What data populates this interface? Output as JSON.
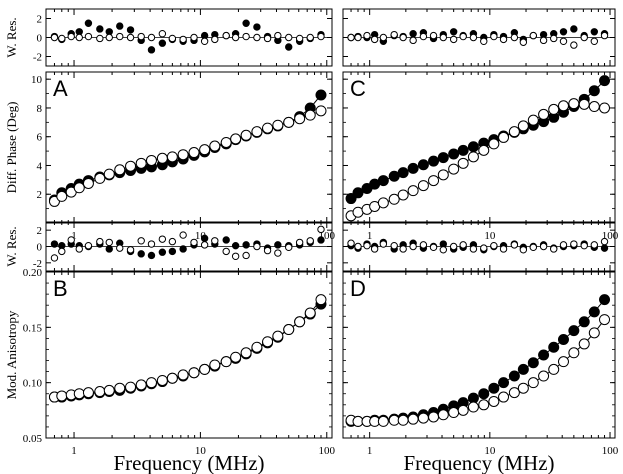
{
  "chart_data": [
    {
      "id": "A",
      "type": "scatter",
      "panel_label": "A",
      "ylabel": "Diff. Phase (Deg)",
      "xlabel": "Frequency (MHz)",
      "xscale": "log",
      "xlim": [
        0.6,
        110
      ],
      "ylim": [
        0,
        10.5
      ],
      "xticks": [
        "1",
        "10",
        "100"
      ],
      "yticks": [
        "2",
        "4",
        "6",
        "8",
        "10"
      ],
      "series": [
        {
          "marker": "filled",
          "x": [
            0.7,
            0.8,
            0.95,
            1.1,
            1.3,
            1.6,
            1.9,
            2.3,
            2.8,
            3.4,
            4.1,
            5,
            6,
            7.3,
            8.9,
            10.8,
            13,
            16,
            19,
            23,
            28,
            34,
            41,
            50,
            61,
            74,
            90
          ],
          "y": [
            1.6,
            2.1,
            2.4,
            2.7,
            2.95,
            3.2,
            3.35,
            3.5,
            3.65,
            3.8,
            3.9,
            4.05,
            4.25,
            4.45,
            4.7,
            4.95,
            5.25,
            5.5,
            5.8,
            6.05,
            6.3,
            6.55,
            6.75,
            7.0,
            7.4,
            8.0,
            8.9
          ]
        },
        {
          "marker": "open",
          "x": [
            0.7,
            0.8,
            0.95,
            1.1,
            1.3,
            1.6,
            1.9,
            2.3,
            2.8,
            3.4,
            4.1,
            5,
            6,
            7.3,
            8.9,
            10.8,
            13,
            16,
            19,
            23,
            28,
            34,
            41,
            50,
            61,
            74,
            90
          ],
          "y": [
            1.5,
            1.85,
            2.15,
            2.45,
            2.75,
            3.1,
            3.4,
            3.7,
            3.95,
            4.15,
            4.35,
            4.5,
            4.6,
            4.75,
            4.9,
            5.1,
            5.35,
            5.6,
            5.85,
            6.1,
            6.35,
            6.6,
            6.8,
            7.0,
            7.25,
            7.5,
            7.8
          ]
        }
      ]
    },
    {
      "id": "A-res",
      "type": "scatter",
      "ylabel": "W. Res.",
      "xscale": "log",
      "xlim": [
        0.6,
        110
      ],
      "ylim": [
        -3,
        3
      ],
      "yticks": [
        "-2",
        "0",
        "2"
      ],
      "series": [
        {
          "marker": "filled",
          "x": [
            0.7,
            0.8,
            0.95,
            1.1,
            1.3,
            1.6,
            1.9,
            2.3,
            2.8,
            3.4,
            4.1,
            5,
            6,
            7.3,
            8.9,
            10.8,
            13,
            16,
            19,
            23,
            28,
            34,
            41,
            50,
            61,
            74,
            90
          ],
          "y": [
            0.1,
            -0.2,
            0.4,
            0.6,
            1.5,
            0.9,
            0.6,
            1.2,
            0.8,
            -0.3,
            -1.3,
            -0.6,
            -0.2,
            -0.4,
            -0.3,
            0.2,
            0.3,
            0.2,
            0.4,
            1.5,
            1.1,
            0.1,
            -0.3,
            -1.0,
            -0.4,
            -0.1,
            0.3
          ]
        },
        {
          "marker": "open",
          "x": [
            0.7,
            0.8,
            0.95,
            1.1,
            1.3,
            1.6,
            1.9,
            2.3,
            2.8,
            3.4,
            4.1,
            5,
            6,
            7.3,
            8.9,
            10.8,
            13,
            16,
            19,
            23,
            28,
            34,
            41,
            50,
            61,
            74,
            90
          ],
          "y": [
            0.0,
            -0.1,
            0.1,
            0.0,
            0.1,
            -0.1,
            0.0,
            0.1,
            0.0,
            0.1,
            0.0,
            0.4,
            -0.1,
            -0.2,
            0.0,
            -0.4,
            -0.2,
            0.2,
            0.0,
            0.1,
            0.0,
            -0.1,
            0.2,
            0.0,
            -0.1,
            0.0,
            0.1
          ]
        }
      ]
    },
    {
      "id": "B",
      "type": "scatter",
      "panel_label": "B",
      "ylabel": "Mod. Anisotropy",
      "xlabel": "Frequency (MHz)",
      "xscale": "log",
      "xlim": [
        0.6,
        110
      ],
      "ylim": [
        0.05,
        0.2
      ],
      "xticks": [
        "1",
        "10",
        "100"
      ],
      "yticks": [
        "0.05",
        "0.10",
        "0.15",
        "0.20"
      ],
      "series": [
        {
          "marker": "filled",
          "x": [
            0.7,
            0.8,
            0.95,
            1.1,
            1.3,
            1.6,
            1.9,
            2.3,
            2.8,
            3.4,
            4.1,
            5,
            6,
            7.3,
            8.9,
            10.8,
            13,
            16,
            19,
            23,
            28,
            34,
            41,
            50,
            61,
            74,
            90
          ],
          "y": [
            0.087,
            0.087,
            0.088,
            0.089,
            0.09,
            0.091,
            0.092,
            0.093,
            0.095,
            0.097,
            0.099,
            0.101,
            0.104,
            0.106,
            0.109,
            0.112,
            0.115,
            0.119,
            0.122,
            0.126,
            0.131,
            0.136,
            0.141,
            0.148,
            0.155,
            0.162,
            0.171
          ]
        },
        {
          "marker": "open",
          "x": [
            0.7,
            0.8,
            0.95,
            1.1,
            1.3,
            1.6,
            1.9,
            2.3,
            2.8,
            3.4,
            4.1,
            5,
            6,
            7.3,
            8.9,
            10.8,
            13,
            16,
            19,
            23,
            28,
            34,
            41,
            50,
            61,
            74,
            90
          ],
          "y": [
            0.087,
            0.088,
            0.089,
            0.09,
            0.091,
            0.092,
            0.093,
            0.095,
            0.096,
            0.098,
            0.1,
            0.102,
            0.104,
            0.107,
            0.109,
            0.112,
            0.116,
            0.119,
            0.123,
            0.127,
            0.132,
            0.137,
            0.142,
            0.148,
            0.155,
            0.163,
            0.175
          ]
        }
      ]
    },
    {
      "id": "B-res",
      "type": "scatter",
      "ylabel": "W. Res.",
      "xscale": "log",
      "xlim": [
        0.6,
        110
      ],
      "ylim": [
        -3,
        3
      ],
      "yticks": [
        "-2",
        "0",
        "2"
      ],
      "series": [
        {
          "marker": "filled",
          "x": [
            0.7,
            0.8,
            0.95,
            1.1,
            1.3,
            1.6,
            1.9,
            2.3,
            2.8,
            3.4,
            4.1,
            5,
            6,
            7.3,
            8.9,
            10.8,
            13,
            16,
            19,
            23,
            28,
            34,
            41,
            50,
            61,
            74,
            90
          ],
          "y": [
            0.3,
            0.1,
            0.3,
            0.1,
            0.0,
            0.3,
            -0.3,
            0.4,
            -0.6,
            -0.9,
            -1.1,
            -0.7,
            -0.6,
            -0.3,
            0.2,
            1.0,
            0.3,
            0.8,
            0.1,
            0.2,
            0.3,
            -0.2,
            0.2,
            0.1,
            0.2,
            0.5,
            0.8
          ]
        },
        {
          "marker": "open",
          "x": [
            0.7,
            0.8,
            0.95,
            1.1,
            1.3,
            1.6,
            1.9,
            2.3,
            2.8,
            3.4,
            4.1,
            5,
            6,
            7.3,
            8.9,
            10.8,
            13,
            16,
            19,
            23,
            28,
            34,
            41,
            50,
            61,
            74,
            90
          ],
          "y": [
            -1.4,
            -0.6,
            0.8,
            -0.3,
            0.1,
            0.6,
            0.5,
            -0.2,
            -0.4,
            0.7,
            0.3,
            0.9,
            0.6,
            1.4,
            0.5,
            0.2,
            0.7,
            -0.6,
            -1.2,
            -1.1,
            0.0,
            -0.5,
            -0.8,
            -0.1,
            0.5,
            0.7,
            2.1
          ]
        }
      ]
    },
    {
      "id": "C",
      "type": "scatter",
      "panel_label": "C",
      "xlabel": "Frequency (MHz)",
      "xscale": "log",
      "xlim": [
        0.6,
        110
      ],
      "ylim": [
        0,
        10.5
      ],
      "xticks": [
        "1",
        "10",
        "100"
      ],
      "series": [
        {
          "marker": "filled",
          "x": [
            0.7,
            0.8,
            0.95,
            1.1,
            1.3,
            1.6,
            1.9,
            2.3,
            2.8,
            3.4,
            4.1,
            5,
            6,
            7.3,
            8.9,
            10.8,
            13,
            16,
            19,
            23,
            28,
            34,
            41,
            50,
            61,
            74,
            90
          ],
          "y": [
            1.7,
            2.1,
            2.4,
            2.7,
            2.95,
            3.25,
            3.5,
            3.8,
            4.05,
            4.3,
            4.55,
            4.8,
            5.05,
            5.3,
            5.55,
            5.8,
            6.05,
            6.3,
            6.55,
            6.8,
            7.05,
            7.35,
            7.7,
            8.1,
            8.6,
            9.2,
            9.9
          ]
        },
        {
          "marker": "open",
          "x": [
            0.7,
            0.8,
            0.95,
            1.1,
            1.3,
            1.6,
            1.9,
            2.3,
            2.8,
            3.4,
            4.1,
            5,
            6,
            7.3,
            8.9,
            10.8,
            13,
            16,
            19,
            23,
            28,
            34,
            41,
            50,
            61,
            74,
            90
          ],
          "y": [
            0.5,
            0.75,
            0.95,
            1.15,
            1.4,
            1.65,
            1.95,
            2.25,
            2.6,
            2.95,
            3.35,
            3.75,
            4.15,
            4.6,
            5.05,
            5.5,
            5.95,
            6.35,
            6.75,
            7.15,
            7.55,
            7.9,
            8.15,
            8.3,
            8.25,
            8.1,
            8.0
          ]
        }
      ]
    },
    {
      "id": "C-res",
      "type": "scatter",
      "xscale": "log",
      "xlim": [
        0.6,
        110
      ],
      "ylim": [
        -3,
        3
      ],
      "series": [
        {
          "marker": "filled",
          "x": [
            0.7,
            0.8,
            0.95,
            1.1,
            1.3,
            1.6,
            1.9,
            2.3,
            2.8,
            3.4,
            4.1,
            5,
            6,
            7.3,
            8.9,
            10.8,
            13,
            16,
            19,
            23,
            28,
            34,
            41,
            50,
            61,
            74,
            90
          ],
          "y": [
            0.0,
            0.1,
            0.0,
            0.3,
            -0.4,
            0.2,
            0.1,
            0.4,
            0.5,
            -0.1,
            0.3,
            0.6,
            0.2,
            0.4,
            0.0,
            0.3,
            0.1,
            0.5,
            -0.2,
            0.2,
            0.3,
            0.4,
            0.6,
            0.9,
            0.2,
            0.6,
            0.4
          ]
        },
        {
          "marker": "open",
          "x": [
            0.7,
            0.8,
            0.95,
            1.1,
            1.3,
            1.6,
            1.9,
            2.3,
            2.8,
            3.4,
            4.1,
            5,
            6,
            7.3,
            8.9,
            10.8,
            13,
            16,
            19,
            23,
            28,
            34,
            41,
            50,
            61,
            74,
            90
          ],
          "y": [
            0.0,
            0.0,
            0.2,
            -0.2,
            0.0,
            0.3,
            0.0,
            -0.3,
            0.1,
            0.2,
            0.0,
            -0.2,
            0.1,
            0.0,
            -0.4,
            0.1,
            -0.2,
            0.0,
            -0.5,
            0.2,
            -0.3,
            -0.1,
            -0.4,
            -0.8,
            0.0,
            -0.4,
            0.2
          ]
        }
      ]
    },
    {
      "id": "D",
      "type": "scatter",
      "panel_label": "D",
      "xlabel": "Frequency (MHz)",
      "xscale": "log",
      "xlim": [
        0.6,
        110
      ],
      "ylim": [
        0.05,
        0.2
      ],
      "xticks": [
        "1",
        "10",
        "100"
      ],
      "series": [
        {
          "marker": "filled",
          "x": [
            0.7,
            0.8,
            0.95,
            1.1,
            1.3,
            1.6,
            1.9,
            2.3,
            2.8,
            3.4,
            4.1,
            5,
            6,
            7.3,
            8.9,
            10.8,
            13,
            16,
            19,
            23,
            28,
            34,
            41,
            50,
            61,
            74,
            90
          ],
          "y": [
            0.065,
            0.065,
            0.065,
            0.066,
            0.066,
            0.067,
            0.068,
            0.069,
            0.071,
            0.073,
            0.076,
            0.079,
            0.082,
            0.086,
            0.09,
            0.095,
            0.1,
            0.106,
            0.112,
            0.118,
            0.125,
            0.132,
            0.139,
            0.147,
            0.155,
            0.164,
            0.175
          ]
        },
        {
          "marker": "open",
          "x": [
            0.7,
            0.8,
            0.95,
            1.1,
            1.3,
            1.6,
            1.9,
            2.3,
            2.8,
            3.4,
            4.1,
            5,
            6,
            7.3,
            8.9,
            10.8,
            13,
            16,
            19,
            23,
            28,
            34,
            41,
            50,
            61,
            74,
            90
          ],
          "y": [
            0.066,
            0.065,
            0.065,
            0.065,
            0.065,
            0.066,
            0.066,
            0.067,
            0.068,
            0.069,
            0.071,
            0.073,
            0.075,
            0.078,
            0.08,
            0.083,
            0.087,
            0.091,
            0.095,
            0.1,
            0.106,
            0.112,
            0.119,
            0.127,
            0.135,
            0.145,
            0.157
          ]
        }
      ]
    },
    {
      "id": "D-res",
      "type": "scatter",
      "xscale": "log",
      "xlim": [
        0.6,
        110
      ],
      "ylim": [
        -3,
        3
      ],
      "series": [
        {
          "marker": "filled",
          "x": [
            0.7,
            0.8,
            0.95,
            1.1,
            1.3,
            1.6,
            1.9,
            2.3,
            2.8,
            3.4,
            4.1,
            5,
            6,
            7.3,
            8.9,
            10.8,
            13,
            16,
            19,
            23,
            28,
            34,
            41,
            50,
            61,
            74,
            90
          ],
          "y": [
            0.1,
            -0.2,
            0.3,
            0.0,
            0.5,
            -0.3,
            0.2,
            0.4,
            -0.2,
            0.0,
            0.3,
            -0.3,
            -0.1,
            0.2,
            -0.4,
            0.0,
            0.1,
            0.3,
            -0.1,
            0.0,
            0.2,
            -0.2,
            0.0,
            0.1,
            0.3,
            -0.1,
            -0.2
          ]
        },
        {
          "marker": "open",
          "x": [
            0.7,
            0.8,
            0.95,
            1.1,
            1.3,
            1.6,
            1.9,
            2.3,
            2.8,
            3.4,
            4.1,
            5,
            6,
            7.3,
            8.9,
            10.8,
            13,
            16,
            19,
            23,
            28,
            34,
            41,
            50,
            61,
            74,
            90
          ],
          "y": [
            0.4,
            0.0,
            0.1,
            -0.3,
            0.3,
            0.1,
            -0.3,
            0.0,
            0.2,
            -0.1,
            -0.4,
            0.0,
            0.2,
            -0.3,
            -0.2,
            0.1,
            -0.3,
            0.2,
            -0.4,
            -0.1,
            0.0,
            -0.3,
            0.2,
            0.3,
            0.1,
            0.2,
            0.6
          ]
        }
      ]
    }
  ]
}
